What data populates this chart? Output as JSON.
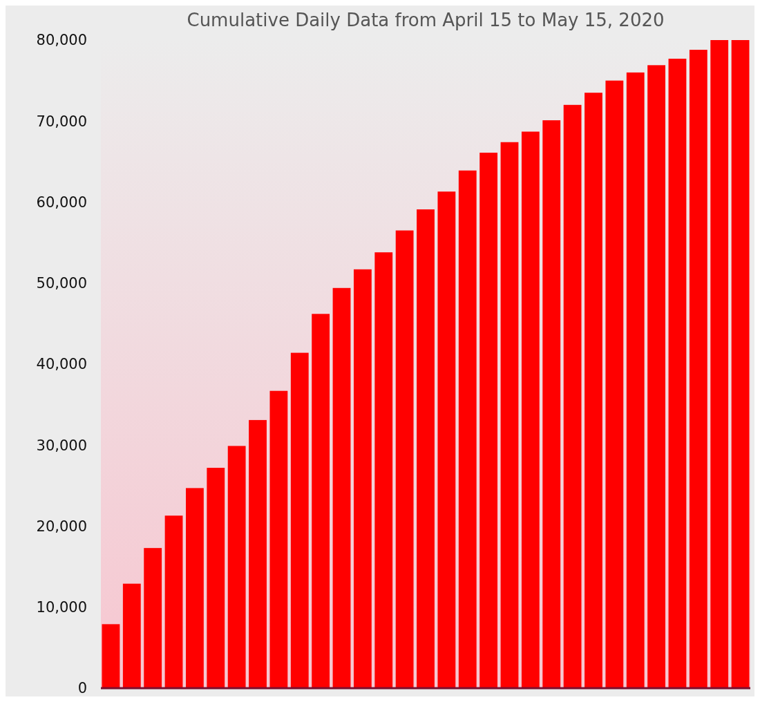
{
  "chart_data": {
    "type": "bar",
    "title": "Cumulative Daily Data from April 15 to May 15, 2020",
    "categories": [
      null,
      null,
      null,
      null,
      null,
      null,
      null,
      null,
      null,
      null,
      null,
      null,
      null,
      null,
      null,
      null,
      null,
      null,
      null,
      null,
      null,
      null,
      null,
      null,
      null,
      null,
      null,
      null,
      null,
      null,
      null
    ],
    "values": [
      7900,
      12900,
      17300,
      21300,
      24700,
      27200,
      29900,
      33100,
      36700,
      41400,
      46200,
      49400,
      51700,
      53800,
      56500,
      59100,
      61300,
      63900,
      66100,
      67400,
      68700,
      70100,
      72000,
      73500,
      75000,
      76000,
      76900,
      77700,
      78800,
      80000,
      80000
    ],
    "color": "#ff0000",
    "ylim": [
      0,
      80000
    ],
    "yticks": [
      {
        "value": 0,
        "label": "0"
      },
      {
        "value": 10000,
        "label": "10,000"
      },
      {
        "value": 20000,
        "label": "20,000"
      },
      {
        "value": 30000,
        "label": "30,000"
      },
      {
        "value": 40000,
        "label": "40,000"
      },
      {
        "value": 50000,
        "label": "50,000"
      },
      {
        "value": 60000,
        "label": "60,000"
      },
      {
        "value": 70000,
        "label": "70,000"
      },
      {
        "value": 80000,
        "label": "80,000"
      }
    ],
    "grid": false
  }
}
